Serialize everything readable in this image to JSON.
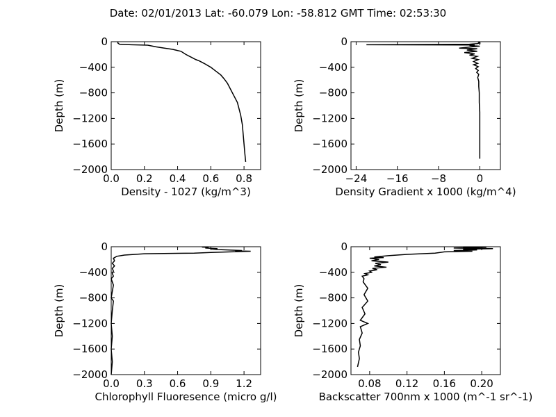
{
  "title": "Date: 02/01/2013  Lat:  -60.079 Lon:  -58.812  GMT Time: 02:53:30",
  "chart_data": [
    {
      "id": "density",
      "type": "line",
      "xlabel": "Density - 1027 (kg/m^3)",
      "ylabel": "Depth (m)",
      "xlim": [
        0.0,
        0.9
      ],
      "ylim": [
        -2000,
        0
      ],
      "xticks": [
        0.0,
        0.2,
        0.4,
        0.6,
        0.8
      ],
      "xtick_labels": [
        "0.0",
        "0.2",
        "0.4",
        "0.6",
        "0.8"
      ],
      "yticks": [
        0,
        -400,
        -800,
        -1200,
        -1600,
        -2000
      ],
      "ytick_labels": [
        "0",
        "−400",
        "−800",
        "−1200",
        "−1600",
        "−2000"
      ],
      "grid": false,
      "series": [
        {
          "points": [
            [
              0.04,
              0
            ],
            [
              0.04,
              -20
            ],
            [
              0.05,
              -40
            ],
            [
              0.12,
              -48
            ],
            [
              0.22,
              -55
            ],
            [
              0.27,
              -80
            ],
            [
              0.32,
              -100
            ],
            [
              0.37,
              -120
            ],
            [
              0.42,
              -150
            ],
            [
              0.45,
              -200
            ],
            [
              0.48,
              -240
            ],
            [
              0.51,
              -280
            ],
            [
              0.53,
              -300
            ],
            [
              0.56,
              -340
            ],
            [
              0.6,
              -400
            ],
            [
              0.63,
              -460
            ],
            [
              0.66,
              -520
            ],
            [
              0.68,
              -580
            ],
            [
              0.7,
              -650
            ],
            [
              0.72,
              -750
            ],
            [
              0.74,
              -850
            ],
            [
              0.76,
              -950
            ],
            [
              0.77,
              -1050
            ],
            [
              0.78,
              -1150
            ],
            [
              0.79,
              -1300
            ],
            [
              0.795,
              -1450
            ],
            [
              0.8,
              -1600
            ],
            [
              0.805,
              -1750
            ],
            [
              0.81,
              -1880
            ]
          ]
        }
      ]
    },
    {
      "id": "density-gradient",
      "type": "line",
      "xlabel": "Density Gradient x 1000 (kg/m^4)",
      "ylabel": "Depth (m)",
      "xlim": [
        -25,
        4
      ],
      "ylim": [
        -2000,
        0
      ],
      "xticks": [
        -24,
        -16,
        -8,
        0
      ],
      "xtick_labels": [
        "−24",
        "−16",
        "−8",
        "0"
      ],
      "yticks": [
        0,
        -400,
        -800,
        -1200,
        -1600,
        -2000
      ],
      "ytick_labels": [
        "0",
        "−400",
        "−800",
        "−1200",
        "−1600",
        "−2000"
      ],
      "grid": false,
      "series": [
        {
          "points": [
            [
              0,
              0
            ],
            [
              -0.2,
              -10
            ],
            [
              0,
              -20
            ],
            [
              -0.5,
              -30
            ],
            [
              -2,
              -40
            ],
            [
              -22,
              -48
            ],
            [
              -1,
              -52
            ],
            [
              -2,
              -60
            ],
            [
              0,
              -70
            ],
            [
              -1.5,
              -80
            ],
            [
              -4,
              -100
            ],
            [
              -0.5,
              -110
            ],
            [
              -2.5,
              -130
            ],
            [
              -0.5,
              -150
            ],
            [
              -3,
              -170
            ],
            [
              -1,
              -190
            ],
            [
              -2,
              -210
            ],
            [
              -0.5,
              -230
            ],
            [
              -1.5,
              -260
            ],
            [
              -0.3,
              -280
            ],
            [
              -1.2,
              -310
            ],
            [
              -0.4,
              -340
            ],
            [
              -1.2,
              -360
            ],
            [
              -0.3,
              -390
            ],
            [
              -0.8,
              -420
            ],
            [
              -0.3,
              -450
            ],
            [
              -0.6,
              -480
            ],
            [
              -0.2,
              -510
            ],
            [
              -0.4,
              -560
            ],
            [
              -0.2,
              -620
            ],
            [
              -0.2,
              -700
            ],
            [
              -0.1,
              -800
            ],
            [
              -0.1,
              -950
            ],
            [
              0,
              -1100
            ],
            [
              0,
              -1300
            ],
            [
              0,
              -1500
            ],
            [
              0,
              -1700
            ],
            [
              0,
              -1830
            ]
          ]
        }
      ]
    },
    {
      "id": "chlorophyll",
      "type": "line",
      "xlabel": "Chlorophyll Fluoresence (micro g/l)",
      "ylabel": "Depth (m)",
      "xlim": [
        0.0,
        1.35
      ],
      "ylim": [
        -2000,
        0
      ],
      "xticks": [
        0.0,
        0.3,
        0.6,
        0.9,
        1.2
      ],
      "xtick_labels": [
        "0.0",
        "0.3",
        "0.6",
        "0.9",
        "1.2"
      ],
      "yticks": [
        0,
        -400,
        -800,
        -1200,
        -1600,
        -2000
      ],
      "ytick_labels": [
        "0",
        "−400",
        "−800",
        "−1200",
        "−1600",
        "−2000"
      ],
      "grid": false,
      "series": [
        {
          "points": [
            [
              0.82,
              -5
            ],
            [
              0.88,
              -10
            ],
            [
              0.85,
              -20
            ],
            [
              0.96,
              -30
            ],
            [
              0.9,
              -40
            ],
            [
              1.05,
              -50
            ],
            [
              1.18,
              -60
            ],
            [
              1.12,
              -65
            ],
            [
              1.26,
              -70
            ],
            [
              0.9,
              -90
            ],
            [
              0.75,
              -100
            ],
            [
              0.3,
              -110
            ],
            [
              0.12,
              -130
            ],
            [
              0.05,
              -150
            ],
            [
              0.02,
              -180
            ],
            [
              0.03,
              -220
            ],
            [
              0.01,
              -260
            ],
            [
              0.03,
              -300
            ],
            [
              0.01,
              -340
            ],
            [
              0.02,
              -380
            ],
            [
              0.01,
              -420
            ],
            [
              0.02,
              -460
            ],
            [
              0.0,
              -500
            ],
            [
              0.02,
              -600
            ],
            [
              0.01,
              -700
            ],
            [
              0.0,
              -800
            ],
            [
              0.02,
              -850
            ],
            [
              0.01,
              -1000
            ],
            [
              0.0,
              -1200
            ],
            [
              0.01,
              -1400
            ],
            [
              0.0,
              -1600
            ],
            [
              0.01,
              -1800
            ],
            [
              0.0,
              -2000
            ]
          ]
        }
      ]
    },
    {
      "id": "backscatter",
      "type": "line",
      "xlabel": "Backscatter 700nm x 1000 (m^-1 sr^-1)",
      "ylabel": "Depth (m)",
      "xlim": [
        0.06,
        0.22
      ],
      "ylim": [
        -2000,
        0
      ],
      "xticks": [
        0.08,
        0.12,
        0.16,
        0.2
      ],
      "xtick_labels": [
        "0.08",
        "0.12",
        "0.16",
        "0.20"
      ],
      "yticks": [
        0,
        -400,
        -800,
        -1200,
        -1600,
        -2000
      ],
      "ytick_labels": [
        "0",
        "−400",
        "−800",
        "−1200",
        "−1600",
        "−2000"
      ],
      "grid": false,
      "series": [
        {
          "points": [
            [
              0.18,
              -5
            ],
            [
              0.205,
              -10
            ],
            [
              0.17,
              -20
            ],
            [
              0.212,
              -30
            ],
            [
              0.18,
              -40
            ],
            [
              0.195,
              -50
            ],
            [
              0.17,
              -60
            ],
            [
              0.19,
              -70
            ],
            [
              0.16,
              -80
            ],
            [
              0.15,
              -100
            ],
            [
              0.12,
              -120
            ],
            [
              0.1,
              -140
            ],
            [
              0.085,
              -160
            ],
            [
              0.095,
              -170
            ],
            [
              0.08,
              -180
            ],
            [
              0.09,
              -200
            ],
            [
              0.082,
              -220
            ],
            [
              0.1,
              -240
            ],
            [
              0.086,
              -260
            ],
            [
              0.092,
              -280
            ],
            [
              0.085,
              -300
            ],
            [
              0.098,
              -320
            ],
            [
              0.083,
              -340
            ],
            [
              0.088,
              -360
            ],
            [
              0.08,
              -380
            ],
            [
              0.082,
              -400
            ],
            [
              0.075,
              -420
            ],
            [
              0.078,
              -440
            ],
            [
              0.072,
              -460
            ],
            [
              0.074,
              -500
            ],
            [
              0.073,
              -550
            ],
            [
              0.078,
              -650
            ],
            [
              0.074,
              -750
            ],
            [
              0.078,
              -850
            ],
            [
              0.072,
              -950
            ],
            [
              0.075,
              -1050
            ],
            [
              0.07,
              -1150
            ],
            [
              0.078,
              -1200
            ],
            [
              0.07,
              -1250
            ],
            [
              0.072,
              -1350
            ],
            [
              0.069,
              -1450
            ],
            [
              0.07,
              -1550
            ],
            [
              0.068,
              -1650
            ],
            [
              0.069,
              -1750
            ],
            [
              0.067,
              -1880
            ]
          ]
        }
      ]
    }
  ]
}
